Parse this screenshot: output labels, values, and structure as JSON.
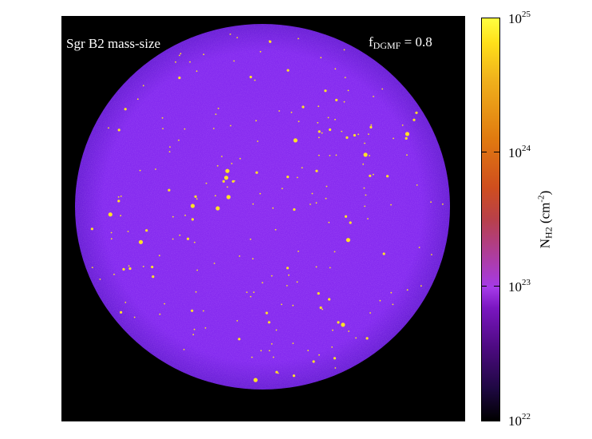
{
  "chart_data": {
    "type": "heatmap",
    "title_left": "Sgr B2 mass-size",
    "annotation_right": {
      "symbol": "f",
      "subscript": "DGMF",
      "value": "= 0.8"
    },
    "colorbar": {
      "label_main": "N",
      "label_subscript": "H2",
      "label_unit_base": "(cm",
      "label_unit_exponent": "-2",
      "label_unit_close": ")",
      "scale": "log",
      "range": [
        1e+22,
        1e+25
      ],
      "ticks": [
        {
          "value": 1e+22,
          "base": "10",
          "exp": "22"
        },
        {
          "value": 1e+23,
          "base": "10",
          "exp": "23"
        },
        {
          "value": 1e+24,
          "base": "10",
          "exp": "24"
        },
        {
          "value": 1e+25,
          "base": "10",
          "exp": "25"
        }
      ]
    },
    "colors": {
      "background": "#000000",
      "cloud": "#8a2bf0",
      "cloud_edge": "#6a1fd6",
      "clumps": "#ffe227"
    },
    "cloud_typical_column_density": 1.5e+23,
    "clump_column_density": 1e+25
  }
}
